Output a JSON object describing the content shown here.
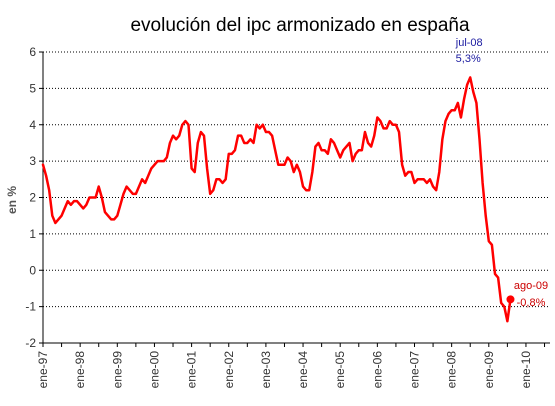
{
  "chart_data": {
    "type": "line",
    "title": "evolución del ipc armonizado en españa",
    "ylabel": "en %",
    "xlabel": "",
    "ylim": [
      -2,
      6
    ],
    "yticks": [
      "-2",
      "-1",
      "0",
      "1",
      "2",
      "3",
      "4",
      "5",
      "6"
    ],
    "categories": [
      "ene-97",
      "ene-98",
      "ene-99",
      "ene-00",
      "ene-01",
      "ene-02",
      "ene-03",
      "ene-04",
      "ene-05",
      "ene-06",
      "ene-07",
      "ene-08",
      "ene-09",
      "ene-10"
    ],
    "grid": true,
    "color": "#ff0000",
    "series": [
      {
        "x": [
          "1997-01",
          "1997-02",
          "1997-03",
          "1997-04",
          "1997-05",
          "1997-06",
          "1997-07",
          "1997-08",
          "1997-09",
          "1997-10",
          "1997-11",
          "1997-12",
          "1998-01",
          "1998-02",
          "1998-03",
          "1998-04",
          "1998-05",
          "1998-06",
          "1998-07",
          "1998-08",
          "1998-09",
          "1998-10",
          "1998-11",
          "1998-12",
          "1999-01",
          "1999-02",
          "1999-03",
          "1999-04",
          "1999-05",
          "1999-06",
          "1999-07",
          "1999-08",
          "1999-09",
          "1999-10",
          "1999-11",
          "1999-12",
          "2000-01",
          "2000-02",
          "2000-03",
          "2000-04",
          "2000-05",
          "2000-06",
          "2000-07",
          "2000-08",
          "2000-09",
          "2000-10",
          "2000-11",
          "2000-12",
          "2001-01",
          "2001-02",
          "2001-03",
          "2001-04",
          "2001-05",
          "2001-06",
          "2001-07",
          "2001-08",
          "2001-09",
          "2001-10",
          "2001-11",
          "2001-12",
          "2002-01",
          "2002-02",
          "2002-03",
          "2002-04",
          "2002-05",
          "2002-06",
          "2002-07",
          "2002-08",
          "2002-09",
          "2002-10",
          "2002-11",
          "2002-12",
          "2003-01",
          "2003-02",
          "2003-03",
          "2003-04",
          "2003-05",
          "2003-06",
          "2003-07",
          "2003-08",
          "2003-09",
          "2003-10",
          "2003-11",
          "2003-12",
          "2004-01",
          "2004-02",
          "2004-03",
          "2004-04",
          "2004-05",
          "2004-06",
          "2004-07",
          "2004-08",
          "2004-09",
          "2004-10",
          "2004-11",
          "2004-12",
          "2005-01",
          "2005-02",
          "2005-03",
          "2005-04",
          "2005-05",
          "2005-06",
          "2005-07",
          "2005-08",
          "2005-09",
          "2005-10",
          "2005-11",
          "2005-12",
          "2006-01",
          "2006-02",
          "2006-03",
          "2006-04",
          "2006-05",
          "2006-06",
          "2006-07",
          "2006-08",
          "2006-09",
          "2006-10",
          "2006-11",
          "2006-12",
          "2007-01",
          "2007-02",
          "2007-03",
          "2007-04",
          "2007-05",
          "2007-06",
          "2007-07",
          "2007-08",
          "2007-09",
          "2007-10",
          "2007-11",
          "2007-12",
          "2008-01",
          "2008-02",
          "2008-03",
          "2008-04",
          "2008-05",
          "2008-06",
          "2008-07",
          "2008-08",
          "2008-09",
          "2008-10",
          "2008-11",
          "2008-12",
          "2009-01",
          "2009-02",
          "2009-03",
          "2009-04",
          "2009-05",
          "2009-06",
          "2009-07",
          "2009-08"
        ],
        "values": [
          2.9,
          2.6,
          2.2,
          1.5,
          1.3,
          1.4,
          1.5,
          1.7,
          1.9,
          1.8,
          1.9,
          1.9,
          1.8,
          1.7,
          1.8,
          2.0,
          2.0,
          2.0,
          2.3,
          2.0,
          1.6,
          1.5,
          1.4,
          1.4,
          1.5,
          1.8,
          2.1,
          2.3,
          2.2,
          2.1,
          2.1,
          2.3,
          2.5,
          2.4,
          2.6,
          2.8,
          2.9,
          3.0,
          3.0,
          3.0,
          3.1,
          3.5,
          3.7,
          3.6,
          3.7,
          4.0,
          4.1,
          4.0,
          2.8,
          2.7,
          3.5,
          3.8,
          3.7,
          2.8,
          2.1,
          2.2,
          2.5,
          2.5,
          2.4,
          2.5,
          3.2,
          3.2,
          3.3,
          3.7,
          3.7,
          3.5,
          3.5,
          3.6,
          3.5,
          4.0,
          3.9,
          4.0,
          3.8,
          3.8,
          3.7,
          3.3,
          2.9,
          2.9,
          2.9,
          3.1,
          3.0,
          2.7,
          2.9,
          2.7,
          2.3,
          2.2,
          2.2,
          2.7,
          3.4,
          3.5,
          3.3,
          3.3,
          3.2,
          3.6,
          3.5,
          3.3,
          3.1,
          3.3,
          3.4,
          3.5,
          3.0,
          3.2,
          3.3,
          3.3,
          3.8,
          3.5,
          3.4,
          3.7,
          4.2,
          4.1,
          3.9,
          3.9,
          4.1,
          4.0,
          4.0,
          3.8,
          2.9,
          2.6,
          2.7,
          2.7,
          2.4,
          2.5,
          2.5,
          2.5,
          2.4,
          2.5,
          2.3,
          2.2,
          2.7,
          3.6,
          4.1,
          4.3,
          4.4,
          4.4,
          4.6,
          4.2,
          4.7,
          5.1,
          5.3,
          4.9,
          4.6,
          3.6,
          2.4,
          1.5,
          0.8,
          0.7,
          -0.1,
          -0.2,
          -0.9,
          -1.0,
          -1.4,
          -0.8
        ]
      }
    ],
    "annotations": [
      {
        "date": "jul-08",
        "value_label": "5,3%",
        "x": "2008-07",
        "y": 5.3,
        "color": "#1a1aa0"
      },
      {
        "date": "ago-09",
        "value_label": "-0,8%",
        "x": "2009-08",
        "y": -0.8,
        "color": "#cc0000"
      }
    ]
  }
}
